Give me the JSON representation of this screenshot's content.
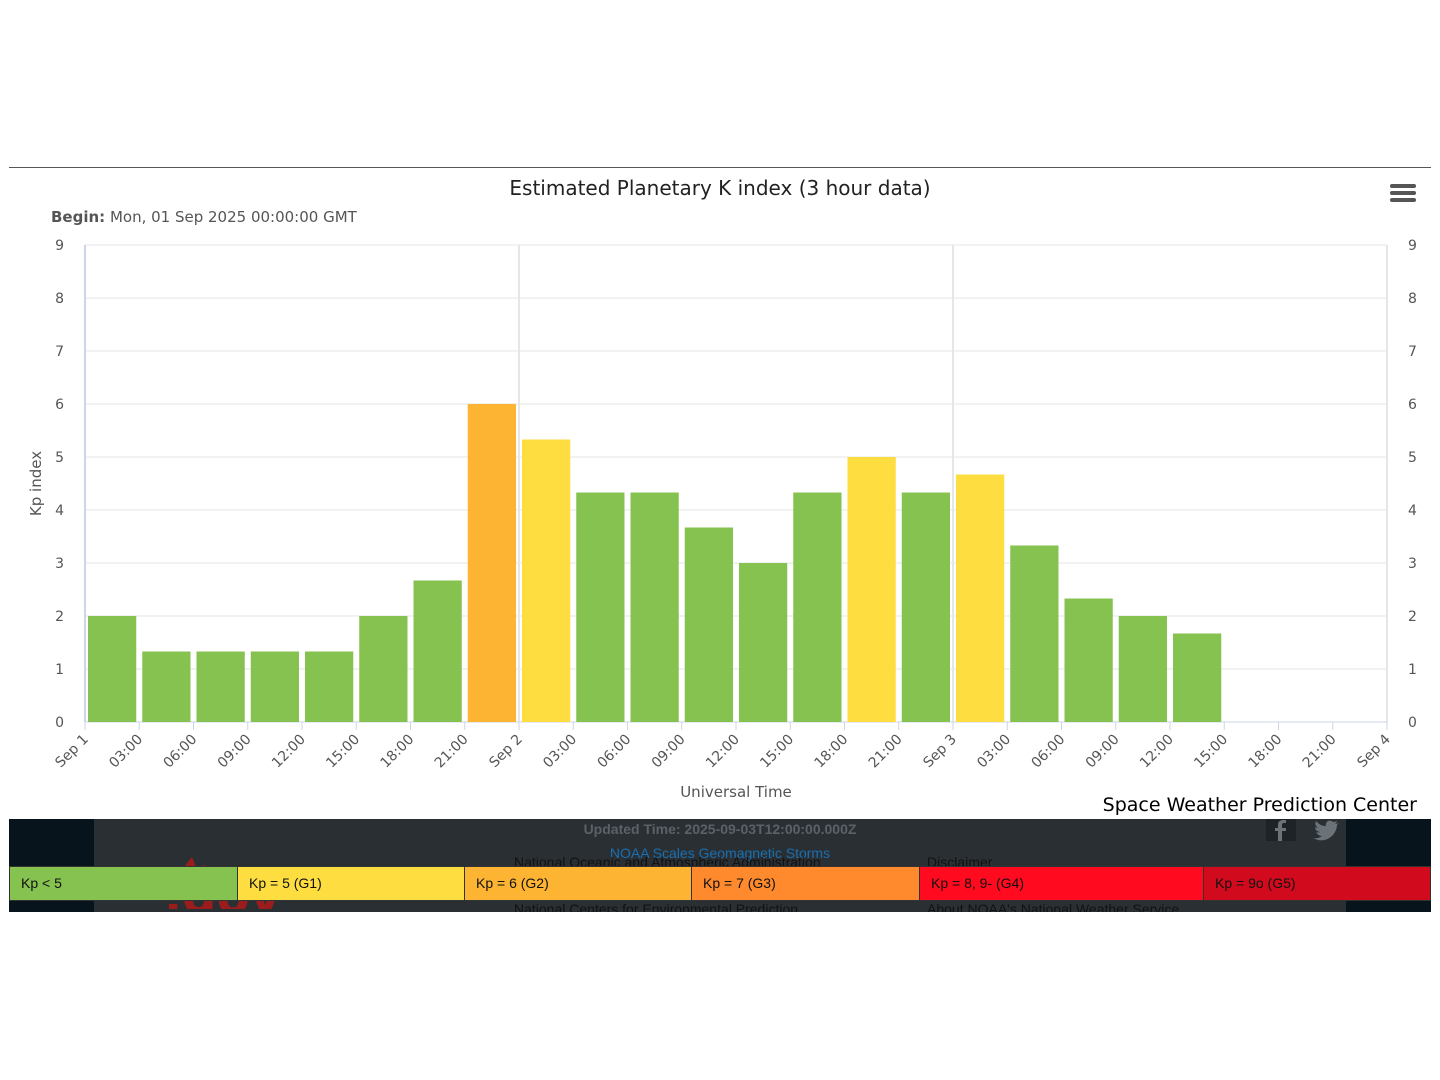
{
  "chart_data": {
    "type": "bar",
    "title": "Estimated Planetary K index (3 hour data)",
    "subtitle_label": "Begin:",
    "subtitle_value": "Mon, 01 Sep 2025 00:00:00 GMT",
    "xlabel": "Universal Time",
    "ylabel": "Kp index",
    "ylim": [
      0,
      9
    ],
    "y_ticks": [
      "0",
      "1",
      "2",
      "3",
      "4",
      "5",
      "6",
      "7",
      "8",
      "9"
    ],
    "x_tick_labels": [
      "Sep 1",
      "03:00",
      "06:00",
      "09:00",
      "12:00",
      "15:00",
      "18:00",
      "21:00",
      "Sep 2",
      "03:00",
      "06:00",
      "09:00",
      "12:00",
      "15:00",
      "18:00",
      "21:00",
      "Sep 3",
      "03:00",
      "06:00",
      "09:00",
      "12:00",
      "15:00",
      "18:00",
      "21:00",
      "Sep 4"
    ],
    "values": [
      2.0,
      1.33,
      1.33,
      1.33,
      1.33,
      2.0,
      2.67,
      6.0,
      5.33,
      4.33,
      4.33,
      3.67,
      3.0,
      4.33,
      5.0,
      4.33,
      4.67,
      3.33,
      2.33,
      2.0,
      1.67
    ],
    "bar_colors": [
      "#85c24f",
      "#85c24f",
      "#85c24f",
      "#85c24f",
      "#85c24f",
      "#85c24f",
      "#85c24f",
      "#feb433",
      "#fddd3f",
      "#85c24f",
      "#85c24f",
      "#85c24f",
      "#85c24f",
      "#85c24f",
      "#fddd3f",
      "#85c24f",
      "#fddd3f",
      "#85c24f",
      "#85c24f",
      "#85c24f",
      "#85c24f"
    ],
    "grid": true,
    "legend": "bottom"
  },
  "credit": "Space Weather Prediction Center",
  "footer": {
    "updated": "Updated Time: 2025-09-03T12:00:00.000Z",
    "scales_link": "NOAA Scales Geomagnetic Storms",
    "links": [
      "National Oceanic and Atmospheric Administration",
      "National Centers for Environmental Prediction",
      "Disclaimer",
      "About NOAA's National Weather Service"
    ]
  },
  "scale_legend": [
    {
      "label": "Kp < 5",
      "color": "#85c24f"
    },
    {
      "label": "Kp = 5 (G1)",
      "color": "#fddd3f"
    },
    {
      "label": "Kp = 6 (G2)",
      "color": "#feb433"
    },
    {
      "label": "Kp = 7 (G3)",
      "color": "#fe8a2d"
    },
    {
      "label": "Kp = 8, 9- (G4)",
      "color": "#ff0a1e"
    },
    {
      "label": "Kp = 9o (G5)",
      "color": "#d20a1e"
    }
  ]
}
